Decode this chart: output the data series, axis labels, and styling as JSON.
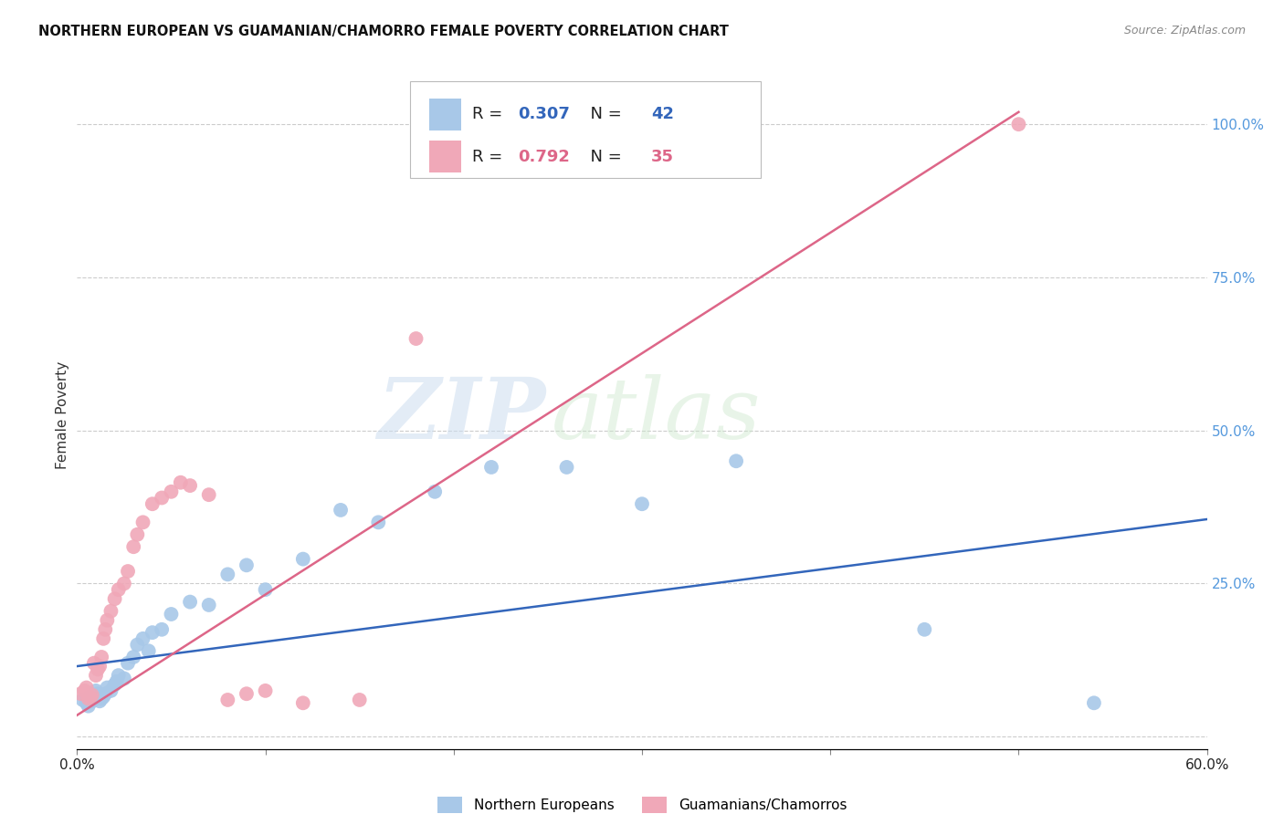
{
  "title": "NORTHERN EUROPEAN VS GUAMANIAN/CHAMORRO FEMALE POVERTY CORRELATION CHART",
  "source": "Source: ZipAtlas.com",
  "ylabel": "Female Poverty",
  "watermark_zip": "ZIP",
  "watermark_atlas": "atlas",
  "xlim": [
    0.0,
    0.6
  ],
  "ylim": [
    -0.02,
    1.07
  ],
  "xtick_positions": [
    0.0,
    0.1,
    0.2,
    0.3,
    0.4,
    0.5,
    0.6
  ],
  "xtick_labels": [
    "0.0%",
    "",
    "",
    "",
    "",
    "",
    "60.0%"
  ],
  "ytick_positions": [
    0.0,
    0.25,
    0.5,
    0.75,
    1.0
  ],
  "ytick_labels": [
    "",
    "25.0%",
    "50.0%",
    "75.0%",
    "100.0%"
  ],
  "blue_R": 0.307,
  "blue_N": 42,
  "pink_R": 0.792,
  "pink_N": 35,
  "legend_label_blue": "Northern Europeans",
  "legend_label_pink": "Guamanians/Chamorros",
  "blue_color": "#a8c8e8",
  "pink_color": "#f0a8b8",
  "blue_line_color": "#3366bb",
  "pink_line_color": "#dd6688",
  "background_color": "#ffffff",
  "grid_color": "#cccccc",
  "blue_scatter_x": [
    0.003,
    0.005,
    0.006,
    0.007,
    0.008,
    0.009,
    0.01,
    0.01,
    0.011,
    0.012,
    0.013,
    0.014,
    0.015,
    0.016,
    0.018,
    0.02,
    0.021,
    0.022,
    0.025,
    0.027,
    0.03,
    0.032,
    0.035,
    0.038,
    0.04,
    0.045,
    0.05,
    0.06,
    0.07,
    0.08,
    0.09,
    0.1,
    0.12,
    0.14,
    0.16,
    0.19,
    0.22,
    0.26,
    0.3,
    0.35,
    0.45,
    0.54
  ],
  "blue_scatter_y": [
    0.06,
    0.055,
    0.05,
    0.065,
    0.058,
    0.062,
    0.068,
    0.075,
    0.07,
    0.058,
    0.062,
    0.065,
    0.07,
    0.08,
    0.075,
    0.085,
    0.09,
    0.1,
    0.095,
    0.12,
    0.13,
    0.15,
    0.16,
    0.14,
    0.17,
    0.175,
    0.2,
    0.22,
    0.215,
    0.265,
    0.28,
    0.24,
    0.29,
    0.37,
    0.35,
    0.4,
    0.44,
    0.44,
    0.38,
    0.45,
    0.175,
    0.055
  ],
  "pink_scatter_x": [
    0.002,
    0.004,
    0.005,
    0.006,
    0.007,
    0.008,
    0.009,
    0.01,
    0.011,
    0.012,
    0.013,
    0.014,
    0.015,
    0.016,
    0.018,
    0.02,
    0.022,
    0.025,
    0.027,
    0.03,
    0.032,
    0.035,
    0.04,
    0.045,
    0.05,
    0.055,
    0.06,
    0.07,
    0.08,
    0.09,
    0.1,
    0.12,
    0.15,
    0.18,
    0.5
  ],
  "pink_scatter_y": [
    0.07,
    0.075,
    0.08,
    0.062,
    0.065,
    0.068,
    0.12,
    0.1,
    0.11,
    0.115,
    0.13,
    0.16,
    0.175,
    0.19,
    0.205,
    0.225,
    0.24,
    0.25,
    0.27,
    0.31,
    0.33,
    0.35,
    0.38,
    0.39,
    0.4,
    0.415,
    0.41,
    0.395,
    0.06,
    0.07,
    0.075,
    0.055,
    0.06,
    0.65,
    1.0
  ],
  "blue_line_x0": 0.0,
  "blue_line_x1": 0.6,
  "blue_line_y0": 0.115,
  "blue_line_y1": 0.355,
  "pink_line_x0": 0.0,
  "pink_line_x1": 0.5,
  "pink_line_y0": 0.035,
  "pink_line_y1": 1.02
}
